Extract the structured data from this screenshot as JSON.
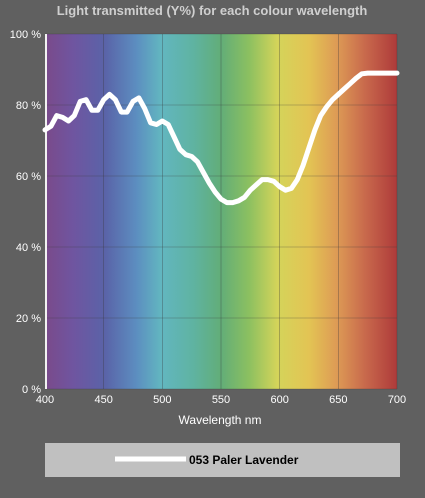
{
  "chart_data": {
    "type": "line",
    "title": "Light transmitted (Y%) for each colour wavelength",
    "xlabel": "Wavelength nm",
    "ylabel": "",
    "xlim": [
      400,
      700
    ],
    "ylim": [
      0,
      100
    ],
    "x_ticks": [
      400,
      450,
      500,
      550,
      600,
      650,
      700
    ],
    "y_ticks": [
      0,
      20,
      40,
      60,
      80,
      100
    ],
    "y_tick_labels": [
      "0 %",
      "20 %",
      "40 %",
      "60 %",
      "80 %",
      "100 %"
    ],
    "grid": true,
    "legend_position": "bottom",
    "series": [
      {
        "name": "053 Paler Lavender",
        "color": "#ffffff",
        "x": [
          400,
          405,
          410,
          415,
          420,
          425,
          430,
          435,
          440,
          445,
          450,
          455,
          460,
          465,
          470,
          475,
          480,
          485,
          490,
          495,
          500,
          505,
          510,
          515,
          520,
          525,
          530,
          535,
          540,
          545,
          550,
          555,
          560,
          565,
          570,
          575,
          580,
          585,
          590,
          595,
          600,
          605,
          610,
          615,
          620,
          625,
          630,
          635,
          640,
          645,
          650,
          655,
          660,
          665,
          670,
          675,
          680,
          685,
          690,
          695,
          700
        ],
        "values": [
          73,
          74,
          77,
          76.5,
          75.5,
          77,
          81,
          81.5,
          78.5,
          78.5,
          81.5,
          83,
          81.5,
          78,
          78,
          81,
          82,
          79,
          75,
          74.5,
          75.5,
          74.5,
          71,
          67.5,
          66,
          65.5,
          64,
          61,
          58,
          55.5,
          53.5,
          52.5,
          52.5,
          53,
          54,
          56,
          57.5,
          59,
          59,
          58.5,
          57,
          56,
          56.5,
          59,
          63,
          68,
          73,
          77,
          79.5,
          81.5,
          83,
          84.5,
          86,
          87.5,
          88.8,
          89,
          89,
          89,
          89,
          89,
          89
        ]
      }
    ]
  },
  "colors": {
    "background": "#606060",
    "legend_box": "#c0c0c0",
    "grid": "#3a3a3a",
    "line": "#ffffff"
  }
}
